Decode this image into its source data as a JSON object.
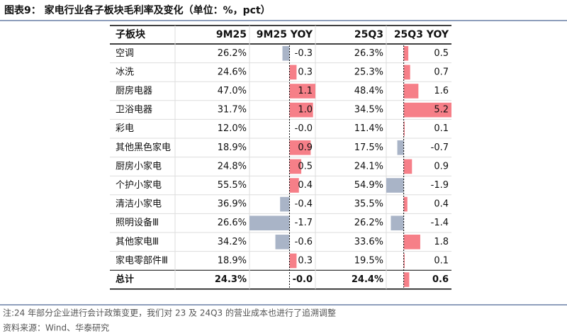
{
  "title": "图表9： 家电行业各子板块毛利率及变化（单位：%，pct）",
  "table": {
    "columns": [
      "子板块",
      "9M25",
      "9M25 YOY",
      "25Q3",
      "25Q3 YOY"
    ],
    "rows": [
      [
        "空调",
        "26.2%",
        "-0.3",
        "26.3%",
        "0.5"
      ],
      [
        "冰洗",
        "24.6%",
        "0.3",
        "25.3%",
        "0.7"
      ],
      [
        "厨房电器",
        "47.0%",
        "1.1",
        "48.4%",
        "1.6"
      ],
      [
        "卫浴电器",
        "31.7%",
        "1.0",
        "34.5%",
        "5.2"
      ],
      [
        "彩电",
        "12.0%",
        "-0.0",
        "11.4%",
        "0.1"
      ],
      [
        "其他黑色家电",
        "18.9%",
        "0.9",
        "17.5%",
        "-0.7"
      ],
      [
        "厨房小家电",
        "24.8%",
        "0.5",
        "24.1%",
        "0.9"
      ],
      [
        "个护小家电",
        "55.5%",
        "0.4",
        "54.9%",
        "-1.9"
      ],
      [
        "清洁小家电",
        "36.9%",
        "-0.4",
        "35.5%",
        "0.4"
      ],
      [
        "照明设备Ⅲ",
        "26.6%",
        "-1.7",
        "26.2%",
        "-1.4"
      ],
      [
        "其他家电Ⅲ",
        "34.2%",
        "-0.6",
        "33.6%",
        "1.8"
      ],
      [
        "家电零部件Ⅲ",
        "18.9%",
        "0.3",
        "19.5%",
        "0.1"
      ],
      [
        "总计",
        "24.3%",
        "-0.0",
        "24.4%",
        "0.6"
      ]
    ]
  },
  "notes": [
    "注:24 年部分企业进行会计政策变更，我们对 23 及 24Q3 的营业成本也进行了追溯调整",
    "资料来源：Wind、华泰研究"
  ]
}
